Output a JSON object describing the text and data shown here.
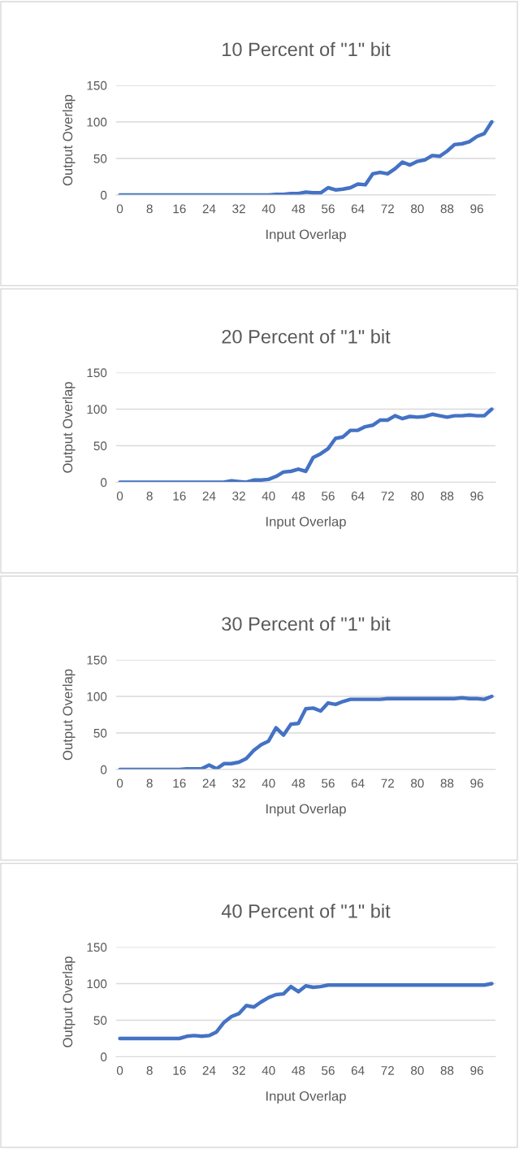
{
  "chart_data": [
    {
      "type": "line",
      "title": "10 Percent of \"1\" bit",
      "xlabel": "Input Overlap",
      "ylabel": "Output Overlap",
      "grid": "y",
      "line_style": "solid",
      "xlim": [
        -1,
        101
      ],
      "xticks": [
        0,
        8,
        16,
        24,
        32,
        40,
        48,
        56,
        64,
        72,
        80,
        88,
        96
      ],
      "ylim": [
        0,
        150
      ],
      "yticks": [
        0,
        50,
        100,
        150
      ],
      "x": [
        0,
        2,
        4,
        6,
        8,
        10,
        12,
        14,
        16,
        18,
        20,
        22,
        24,
        26,
        28,
        30,
        32,
        34,
        36,
        38,
        40,
        42,
        44,
        46,
        48,
        50,
        52,
        54,
        56,
        58,
        60,
        62,
        64,
        66,
        68,
        70,
        72,
        74,
        76,
        78,
        80,
        82,
        84,
        86,
        88,
        90,
        92,
        94,
        96,
        98,
        100
      ],
      "series": [
        {
          "color": "#4472c4",
          "values": [
            0,
            0,
            0,
            0,
            0,
            0,
            0,
            0,
            0,
            0,
            0,
            0,
            0,
            0,
            0,
            0,
            0,
            0,
            0,
            0,
            0,
            1,
            1,
            2,
            2,
            4,
            3,
            3,
            10,
            7,
            8,
            10,
            15,
            14,
            29,
            31,
            29,
            36,
            45,
            41,
            46,
            48,
            54,
            53,
            60,
            69,
            70,
            73,
            80,
            84,
            100
          ]
        }
      ]
    },
    {
      "type": "line",
      "title": "20 Percent of \"1\" bit",
      "xlabel": "Input Overlap",
      "ylabel": "Output Overlap",
      "grid": "y",
      "line_style": "solid",
      "xlim": [
        -1,
        101
      ],
      "xticks": [
        0,
        8,
        16,
        24,
        32,
        40,
        48,
        56,
        64,
        72,
        80,
        88,
        96
      ],
      "ylim": [
        0,
        150
      ],
      "yticks": [
        0,
        50,
        100,
        150
      ],
      "x": [
        0,
        2,
        4,
        6,
        8,
        10,
        12,
        14,
        16,
        18,
        20,
        22,
        24,
        26,
        28,
        30,
        32,
        34,
        36,
        38,
        40,
        42,
        44,
        46,
        48,
        50,
        52,
        54,
        56,
        58,
        60,
        62,
        64,
        66,
        68,
        70,
        72,
        74,
        76,
        78,
        80,
        82,
        84,
        86,
        88,
        90,
        92,
        94,
        96,
        98,
        100
      ],
      "series": [
        {
          "color": "#4472c4",
          "values": [
            0,
            0,
            0,
            0,
            0,
            0,
            0,
            0,
            0,
            0,
            0,
            0,
            0,
            0,
            0,
            2,
            1,
            0,
            3,
            3,
            4,
            8,
            14,
            15,
            18,
            15,
            34,
            39,
            46,
            60,
            62,
            71,
            71,
            76,
            78,
            85,
            85,
            91,
            87,
            90,
            89,
            90,
            93,
            91,
            89,
            91,
            91,
            92,
            91,
            91,
            100
          ]
        }
      ]
    },
    {
      "type": "line",
      "title": "30 Percent of \"1\" bit",
      "xlabel": "Input Overlap",
      "ylabel": "Output Overlap",
      "grid": "y",
      "line_style": "solid",
      "xlim": [
        -1,
        101
      ],
      "xticks": [
        0,
        8,
        16,
        24,
        32,
        40,
        48,
        56,
        64,
        72,
        80,
        88,
        96
      ],
      "ylim": [
        0,
        150
      ],
      "yticks": [
        0,
        50,
        100,
        150
      ],
      "x": [
        0,
        2,
        4,
        6,
        8,
        10,
        12,
        14,
        16,
        18,
        20,
        22,
        24,
        26,
        28,
        30,
        32,
        34,
        36,
        38,
        40,
        42,
        44,
        46,
        48,
        50,
        52,
        54,
        56,
        58,
        60,
        62,
        64,
        66,
        68,
        70,
        72,
        74,
        76,
        78,
        80,
        82,
        84,
        86,
        88,
        90,
        92,
        94,
        96,
        98,
        100
      ],
      "series": [
        {
          "color": "#4472c4",
          "values": [
            0,
            0,
            0,
            0,
            0,
            0,
            0,
            0,
            0,
            1,
            1,
            1,
            6,
            1,
            8,
            8,
            10,
            15,
            26,
            34,
            39,
            57,
            47,
            62,
            63,
            83,
            84,
            80,
            91,
            89,
            93,
            96,
            96,
            96,
            96,
            96,
            97,
            97,
            97,
            97,
            97,
            97,
            97,
            97,
            97,
            97,
            98,
            97,
            97,
            96,
            100
          ]
        }
      ]
    },
    {
      "type": "line",
      "title": "40 Percent of \"1\" bit",
      "xlabel": "Input Overlap",
      "ylabel": "Output Overlap",
      "grid": "y",
      "line_style": "solid",
      "xlim": [
        -1,
        101
      ],
      "xticks": [
        0,
        8,
        16,
        24,
        32,
        40,
        48,
        56,
        64,
        72,
        80,
        88,
        96
      ],
      "ylim": [
        0,
        150
      ],
      "yticks": [
        0,
        50,
        100,
        150
      ],
      "x": [
        0,
        2,
        4,
        6,
        8,
        10,
        12,
        14,
        16,
        18,
        20,
        22,
        24,
        26,
        28,
        30,
        32,
        34,
        36,
        38,
        40,
        42,
        44,
        46,
        48,
        50,
        52,
        54,
        56,
        58,
        60,
        62,
        64,
        66,
        68,
        70,
        72,
        74,
        76,
        78,
        80,
        82,
        84,
        86,
        88,
        90,
        92,
        94,
        96,
        98,
        100
      ],
      "series": [
        {
          "color": "#4472c4",
          "values": [
            25,
            25,
            25,
            25,
            25,
            25,
            25,
            25,
            25,
            28,
            29,
            28,
            29,
            34,
            47,
            55,
            59,
            70,
            68,
            75,
            81,
            85,
            86,
            96,
            89,
            97,
            95,
            96,
            98,
            98,
            98,
            98,
            98,
            98,
            98,
            98,
            98,
            98,
            98,
            98,
            98,
            98,
            98,
            98,
            98,
            98,
            98,
            98,
            98,
            98,
            100
          ]
        }
      ]
    }
  ]
}
